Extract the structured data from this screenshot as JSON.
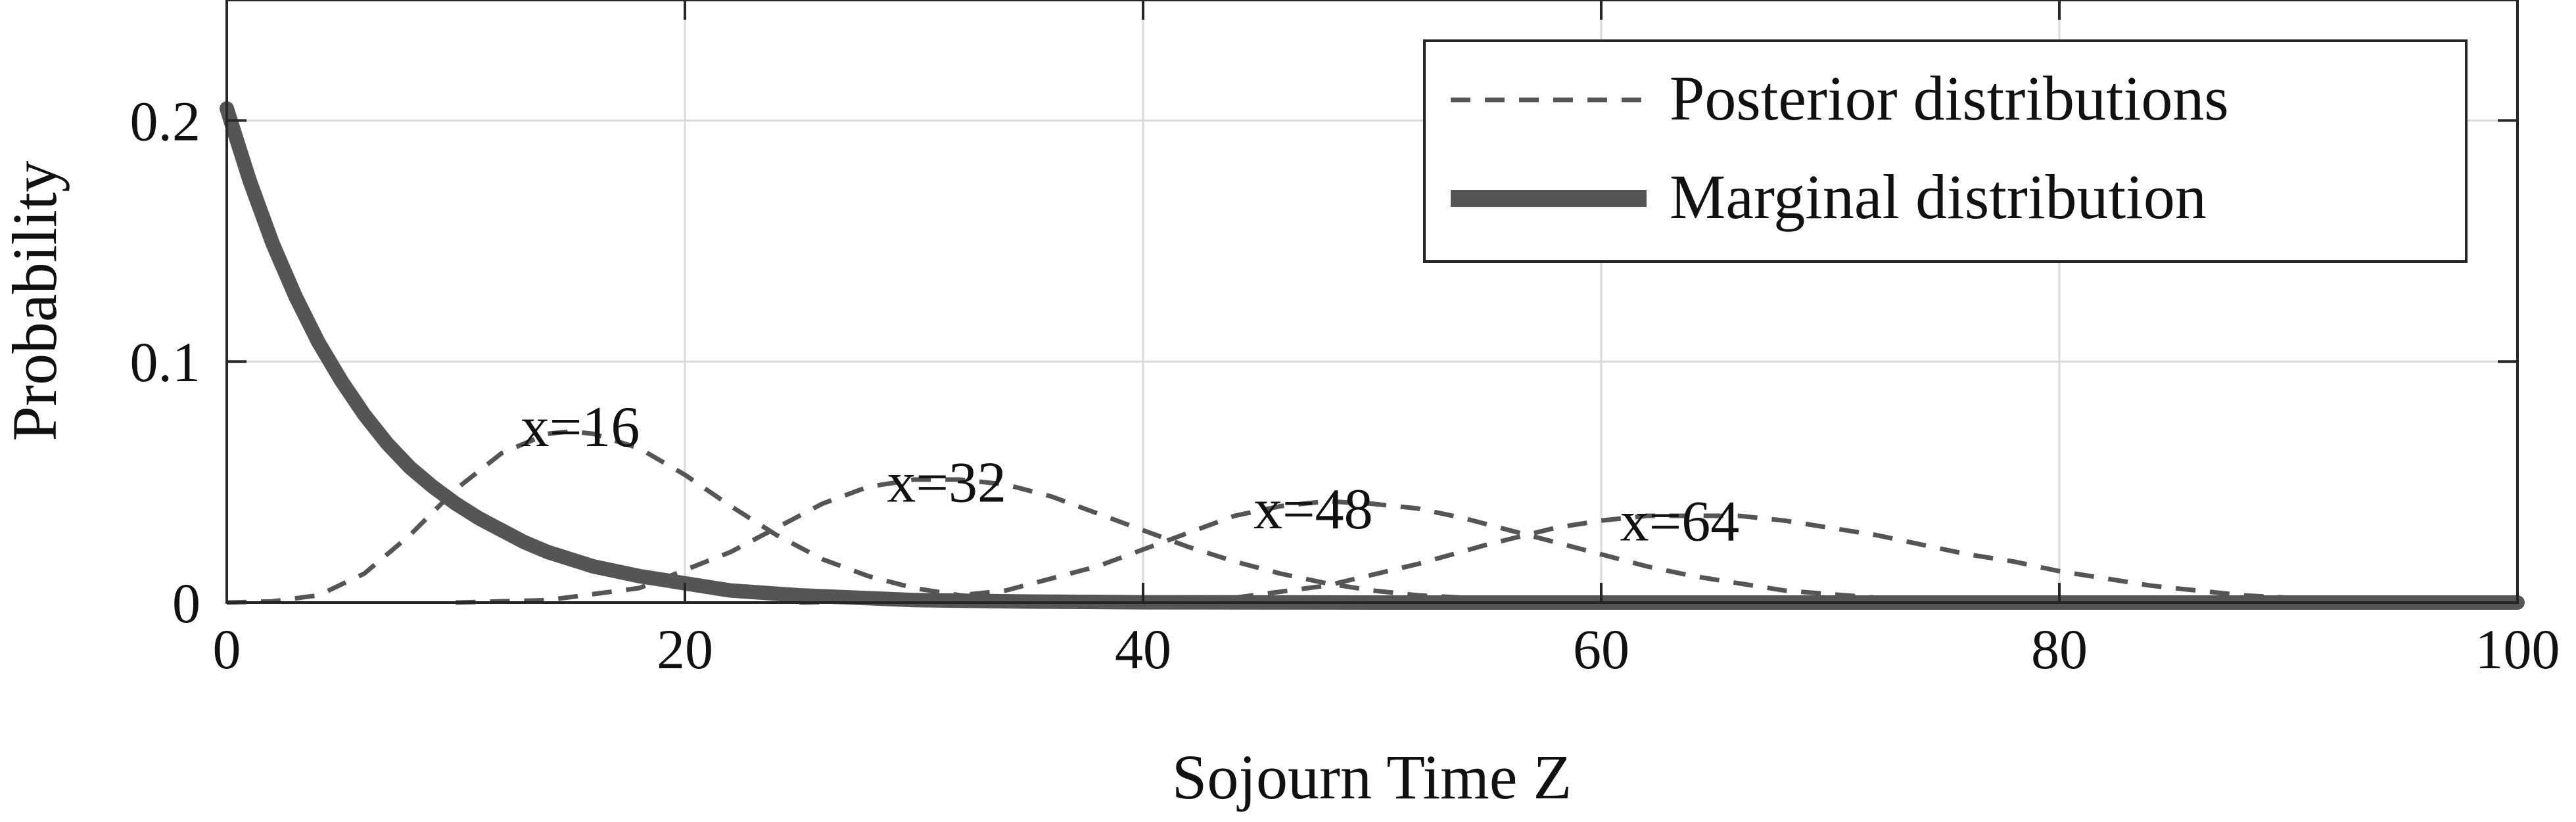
{
  "chart_data": {
    "type": "line",
    "xlabel": "Sojourn Time Z",
    "ylabel": "Probability",
    "xlim": [
      0,
      100
    ],
    "ylim": [
      0,
      0.25
    ],
    "xticks": [
      0,
      20,
      40,
      60,
      80,
      100
    ],
    "yticks": [
      0,
      0.1,
      0.2
    ],
    "xtick_labels": [
      "0",
      "20",
      "40",
      "60",
      "80",
      "100"
    ],
    "ytick_labels": [
      "0",
      "0.1",
      "0.2"
    ],
    "grid": true,
    "legend_position": "top-right",
    "legend": [
      {
        "label": "Posterior distributions",
        "style": "dashed"
      },
      {
        "label": "Marginal distribution",
        "style": "solid"
      }
    ],
    "series": [
      {
        "group": "Posterior distributions",
        "label": "x=16",
        "style": "dashed",
        "x": [
          0,
          2,
          4,
          6,
          8,
          10,
          12,
          14,
          15,
          16,
          18,
          20,
          22,
          24,
          26,
          28,
          30,
          32,
          34
        ],
        "y": [
          0.0,
          0.0005,
          0.003,
          0.012,
          0.028,
          0.047,
          0.062,
          0.07,
          0.071,
          0.07,
          0.064,
          0.053,
          0.04,
          0.028,
          0.018,
          0.011,
          0.006,
          0.003,
          0.001
        ]
      },
      {
        "group": "Posterior distributions",
        "label": "x=32",
        "style": "dashed",
        "x": [
          10,
          14,
          18,
          22,
          24,
          26,
          28,
          30,
          32,
          34,
          36,
          38,
          40,
          42,
          44,
          46,
          48,
          50,
          52,
          56,
          60
        ],
        "y": [
          0.0,
          0.001,
          0.006,
          0.021,
          0.031,
          0.041,
          0.048,
          0.051,
          0.051,
          0.049,
          0.044,
          0.037,
          0.03,
          0.023,
          0.017,
          0.012,
          0.008,
          0.005,
          0.003,
          0.001,
          0.0
        ]
      },
      {
        "group": "Posterior distributions",
        "label": "x=48",
        "style": "dashed",
        "x": [
          25,
          30,
          34,
          38,
          40,
          42,
          44,
          46,
          48,
          50,
          52,
          54,
          56,
          58,
          60,
          62,
          64,
          66,
          68,
          72,
          76,
          80
        ],
        "y": [
          0.0,
          0.001,
          0.005,
          0.015,
          0.022,
          0.029,
          0.036,
          0.04,
          0.042,
          0.041,
          0.039,
          0.035,
          0.03,
          0.025,
          0.02,
          0.015,
          0.011,
          0.008,
          0.005,
          0.002,
          0.0005,
          0.0
        ]
      },
      {
        "group": "Posterior distributions",
        "label": "x=64",
        "style": "dashed",
        "x": [
          38,
          44,
          48,
          52,
          55,
          58,
          60,
          62,
          64,
          66,
          68,
          70,
          72,
          74,
          76,
          78,
          80,
          82,
          84,
          86,
          88,
          90,
          92,
          96
        ],
        "y": [
          0.0,
          0.002,
          0.007,
          0.016,
          0.024,
          0.031,
          0.034,
          0.036,
          0.036,
          0.036,
          0.034,
          0.031,
          0.028,
          0.024,
          0.02,
          0.017,
          0.013,
          0.01,
          0.007,
          0.005,
          0.003,
          0.002,
          0.001,
          0.0
        ]
      },
      {
        "group": "Marginal distribution",
        "label": "",
        "style": "solid",
        "x": [
          0,
          1,
          2,
          3,
          4,
          5,
          6,
          7,
          8,
          9,
          10,
          11,
          12,
          13,
          14,
          15,
          16,
          18,
          20,
          22,
          25,
          30,
          35,
          40,
          50,
          60,
          70,
          80,
          90,
          100
        ],
        "y": [
          0.205,
          0.175,
          0.149,
          0.127,
          0.108,
          0.092,
          0.078,
          0.066,
          0.056,
          0.048,
          0.041,
          0.035,
          0.03,
          0.025,
          0.021,
          0.018,
          0.015,
          0.011,
          0.008,
          0.005,
          0.003,
          0.001,
          0.0004,
          0.0001,
          0.0,
          0.0,
          0.0,
          0.0,
          0.0,
          0.0
        ]
      }
    ],
    "annotations": [
      {
        "text": "x=16",
        "x": 16,
        "y": 0.073
      },
      {
        "text": "x=32",
        "x": 32,
        "y": 0.05
      },
      {
        "text": "x=48",
        "x": 48,
        "y": 0.039
      },
      {
        "text": "x=64",
        "x": 64,
        "y": 0.034
      }
    ],
    "colors": {
      "posterior": "#555555",
      "marginal": "#555555"
    }
  }
}
